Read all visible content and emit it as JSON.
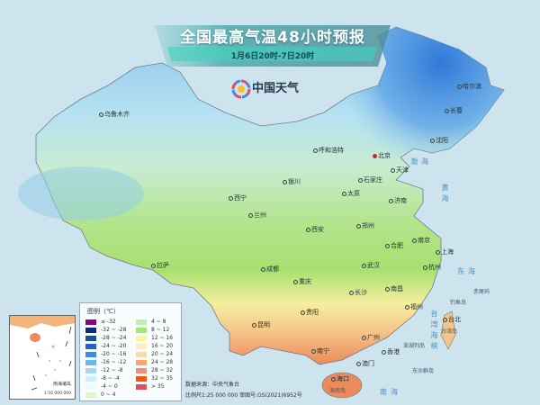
{
  "header": {
    "title": "全国最高气温48小时预报",
    "subtitle": "1月6日20时-7日20时"
  },
  "logo": {
    "text": "中国天气"
  },
  "cities": [
    "哈尔滨",
    "长春",
    "沈阳",
    "乌鲁木齐",
    "呼和浩特",
    "北京",
    "天津",
    "石家庄",
    "太原",
    "济南",
    "银川",
    "西宁",
    "兰州",
    "西安",
    "郑州",
    "合肥",
    "南京",
    "上海",
    "杭州",
    "武汉",
    "成都",
    "重庆",
    "长沙",
    "南昌",
    "贵阳",
    "拉萨",
    "福州",
    "台北",
    "昆明",
    "南宁",
    "广州",
    "香港",
    "澳门",
    "海口"
  ],
  "seas": [
    "渤海",
    "黄海",
    "东海",
    "台湾海峡",
    "南海"
  ],
  "islands": [
    "台湾岛",
    "海南岛",
    "钓鱼岛",
    "赤尾屿",
    "澎湖列岛",
    "东沙群岛"
  ],
  "legend": {
    "title": "图例（℃）",
    "items": [
      {
        "label": "≤ -32",
        "color": "#7b0a7e"
      },
      {
        "label": "-32 ~ -28",
        "color": "#0b2c7a"
      },
      {
        "label": "-28 ~ -24",
        "color": "#1a4fa0"
      },
      {
        "label": "-24 ~ -20",
        "color": "#2463c4"
      },
      {
        "label": "-20 ~ -16",
        "color": "#3b8ae0"
      },
      {
        "label": "-16 ~ -12",
        "color": "#6bb5f0"
      },
      {
        "label": "-12 ~ -8",
        "color": "#a6d8f5"
      },
      {
        "label": "-8 ~ -4",
        "color": "#c8f0fa"
      },
      {
        "label": "-4 ~ 0",
        "color": "#eefaff"
      },
      {
        "label": "0 ~ 4",
        "color": "#dff5cf"
      },
      {
        "label": "4 ~ 8",
        "color": "#baf0b5"
      },
      {
        "label": "8 ~ 12",
        "color": "#a5e86e"
      },
      {
        "label": "12 ~ 16",
        "color": "#f7f79a"
      },
      {
        "label": "16 ~ 20",
        "color": "#fbf0b8"
      },
      {
        "label": "20 ~ 24",
        "color": "#fbd9a8"
      },
      {
        "label": "24 ~ 28",
        "color": "#f7a86a"
      },
      {
        "label": "28 ~ 32",
        "color": "#f78a7a"
      },
      {
        "label": "32 ~ 35",
        "color": "#f05a10"
      },
      {
        "label": "> 35",
        "color": "#e0505a"
      }
    ]
  },
  "inset": {
    "label": "南海诸岛",
    "scale": "1:50 000 000"
  },
  "footer": {
    "source": "数据来源：中央气象台",
    "scale": "比例尺1:25 000 000   审图号:GS(2021)6952号"
  }
}
